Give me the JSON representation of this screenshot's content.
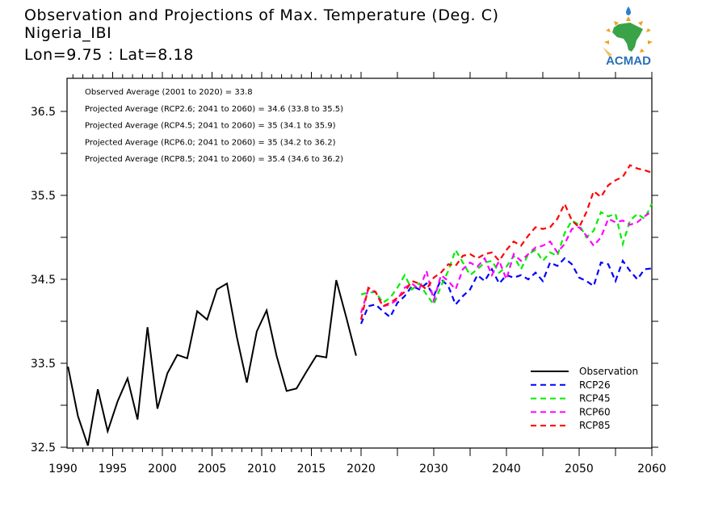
{
  "header": {
    "title": "Observation and Projections of Max. Temperature (Deg. C)",
    "region": "Nigeria_IBI",
    "coords": "Lon=9.75 : Lat=8.18"
  },
  "logo": {
    "text": "ACMAD",
    "colors": {
      "text": "#2a6fb5",
      "africa": "#3aa348",
      "rays": "#f0a020",
      "drop": "#2a7fd0"
    }
  },
  "chart_data": {
    "type": "line",
    "title": "Observation and Projections of Max. Temperature (Deg. C)",
    "xlabel": "",
    "ylabel": "",
    "ylim": [
      32.45,
      36.88
    ],
    "yticks": [
      32.5,
      33.5,
      34.5,
      35.5,
      36.5
    ],
    "ytick_labels": [
      "32.5",
      "33.5",
      "34.5",
      "35.5",
      "36.5"
    ],
    "yminor_ticks": [
      33.0,
      34.0,
      35.0,
      36.0
    ],
    "x_segments": [
      {
        "range": [
          1989.6,
          2020
        ],
        "ticks": [
          1990,
          1995,
          2000,
          2005,
          2010,
          2015,
          2020
        ],
        "minor_step": 1
      },
      {
        "range": [
          2020,
          2060
        ],
        "ticks": [
          2020,
          2030,
          2040,
          2050,
          2060
        ],
        "minor_step": 5
      }
    ],
    "xtick_labels": [
      "1990",
      "1995",
      "2000",
      "2005",
      "2010",
      "2015",
      "2020",
      "2030",
      "2040",
      "2050",
      "2060"
    ],
    "grid": false,
    "legend_position": "bottom-right",
    "annotations": [
      "Observed Average (2001 to 2020) = 33.8",
      "Projected Average (RCP2.6; 2041 to 2060) = 34.6 (33.8 to 35.5)",
      "Projected Average (RCP4.5; 2041 to 2060) = 35 (34.1 to 35.9)",
      "Projected Average (RCP6.0; 2041 to 2060) = 35 (34.2 to 36.2)",
      "Projected Average (RCP8.5; 2041 to 2060) = 35.4 (34.6 to 36.2)"
    ],
    "series": [
      {
        "name": "Observation",
        "color": "#000000",
        "dash": "solid",
        "x": [
          1990.5,
          1991.5,
          1992.5,
          1993.5,
          1994.5,
          1995.5,
          1996.5,
          1997.5,
          1998.5,
          1999.5,
          2000.5,
          2001.5,
          2002.5,
          2003.5,
          2004.5,
          2005.5,
          2006.5,
          2007.5,
          2008.5,
          2009.5,
          2010.5,
          2011.5,
          2012.5,
          2013.5,
          2014.5,
          2015.5,
          2016.5,
          2017.5,
          2018.5,
          2019.5
        ],
        "values": [
          33.46,
          32.87,
          32.52,
          33.19,
          32.69,
          33.05,
          33.32,
          32.83,
          33.93,
          32.96,
          33.38,
          33.6,
          33.56,
          34.12,
          34.02,
          34.38,
          34.45,
          33.81,
          33.27,
          33.88,
          34.13,
          33.59,
          33.17,
          33.2,
          33.4,
          33.59,
          33.57,
          34.49,
          34.05,
          33.59
        ]
      },
      {
        "name": "RCP26",
        "color": "#0000ff",
        "dash": "dashed",
        "x_start": 2020,
        "x_step": 1,
        "values": [
          33.97,
          34.18,
          34.2,
          34.12,
          34.05,
          34.22,
          34.3,
          34.42,
          34.38,
          34.45,
          34.3,
          34.5,
          34.42,
          34.2,
          34.3,
          34.38,
          34.55,
          34.48,
          34.62,
          34.45,
          34.55,
          34.52,
          34.55,
          34.5,
          34.58,
          34.48,
          34.7,
          34.66,
          34.75,
          34.68,
          34.52,
          34.48,
          34.42,
          34.7,
          34.68,
          34.48,
          34.72,
          34.6,
          34.5,
          34.62,
          34.63
        ]
      },
      {
        "name": "RCP45",
        "color": "#00ee00",
        "dash": "dashed",
        "x_start": 2020,
        "x_step": 1,
        "values": [
          34.32,
          34.34,
          34.35,
          34.22,
          34.28,
          34.4,
          34.55,
          34.38,
          34.45,
          34.32,
          34.2,
          34.42,
          34.6,
          34.85,
          34.7,
          34.55,
          34.62,
          34.7,
          34.72,
          34.58,
          34.65,
          34.78,
          34.62,
          34.8,
          34.85,
          34.72,
          34.82,
          34.78,
          35.05,
          35.2,
          35.15,
          35.0,
          35.08,
          35.3,
          35.25,
          35.28,
          34.92,
          35.2,
          35.28,
          35.22,
          35.4
        ]
      },
      {
        "name": "RCP60",
        "color": "#ff00ff",
        "dash": "dashed",
        "x_start": 2020,
        "x_step": 1,
        "values": [
          34.1,
          34.38,
          34.35,
          34.18,
          34.2,
          34.26,
          34.4,
          34.45,
          34.38,
          34.6,
          34.25,
          34.55,
          34.48,
          34.38,
          34.62,
          34.7,
          34.65,
          34.75,
          34.55,
          34.72,
          34.5,
          34.8,
          34.72,
          34.8,
          34.88,
          34.9,
          34.95,
          34.82,
          34.92,
          35.1,
          35.12,
          35.02,
          34.9,
          35.0,
          35.22,
          35.18,
          35.2,
          35.15,
          35.18,
          35.25,
          35.31
        ]
      },
      {
        "name": "RCP85",
        "color": "#ff0000",
        "dash": "dashed",
        "x_start": 2020,
        "x_step": 1,
        "values": [
          34.02,
          34.4,
          34.35,
          34.18,
          34.22,
          34.28,
          34.35,
          34.48,
          34.45,
          34.38,
          34.52,
          34.58,
          34.68,
          34.66,
          34.78,
          34.8,
          34.75,
          34.8,
          34.82,
          34.72,
          34.85,
          34.95,
          34.9,
          35.02,
          35.12,
          35.1,
          35.12,
          35.22,
          35.4,
          35.2,
          35.12,
          35.3,
          35.55,
          35.48,
          35.62,
          35.68,
          35.72,
          35.86,
          35.82,
          35.8,
          35.77
        ]
      }
    ]
  }
}
